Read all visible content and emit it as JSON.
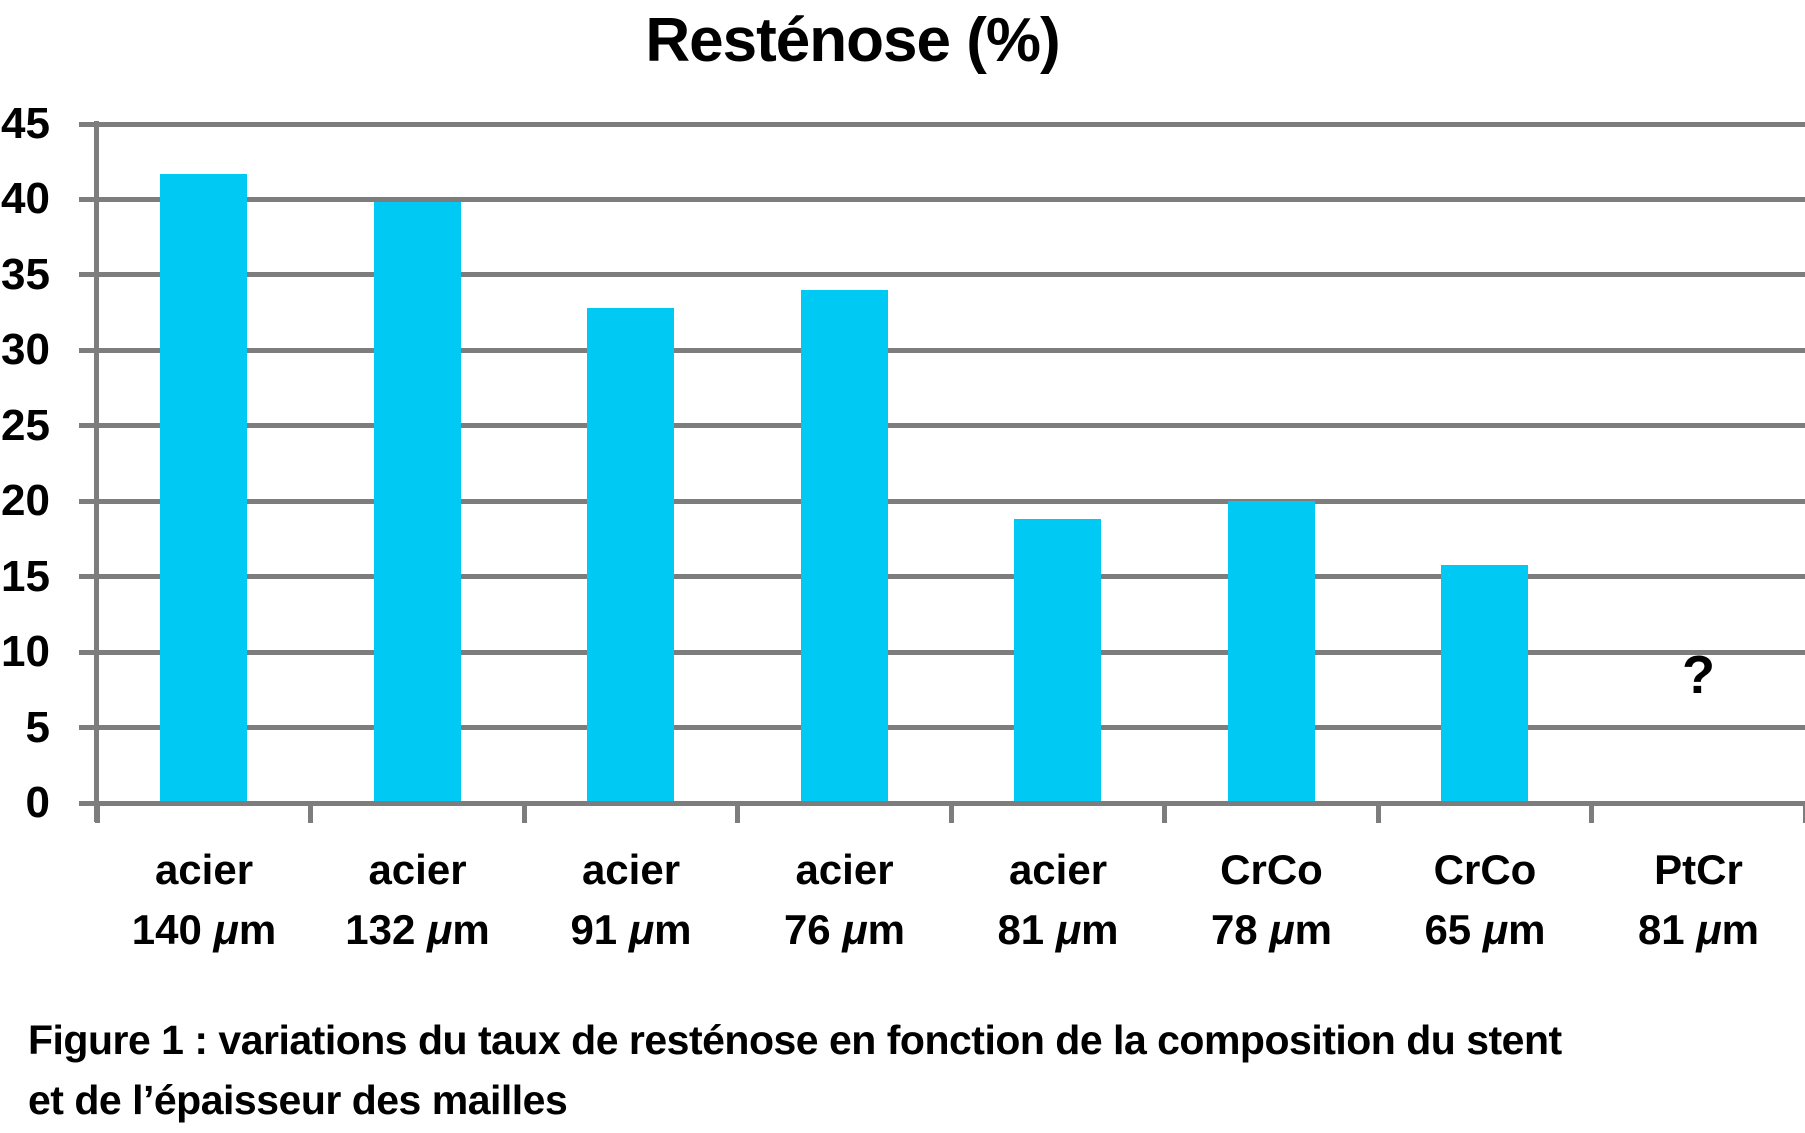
{
  "chart_data": {
    "type": "bar",
    "title": "Resténose (%)",
    "categories": [
      "acier 140 μm",
      "acier 132 μm",
      "acier 91 μm",
      "acier 76 μm",
      "acier 81 μm",
      "CrCo 78 μm",
      "CrCo 65 μm",
      "PtCr 81 μm"
    ],
    "category_lines": [
      {
        "material": "acier",
        "thickness": "140"
      },
      {
        "material": "acier",
        "thickness": "132"
      },
      {
        "material": "acier",
        "thickness": "91"
      },
      {
        "material": "acier",
        "thickness": "76"
      },
      {
        "material": "acier",
        "thickness": "81"
      },
      {
        "material": "CrCo",
        "thickness": "78"
      },
      {
        "material": "CrCo",
        "thickness": "65"
      },
      {
        "material": "PtCr",
        "thickness": "81"
      }
    ],
    "unit": {
      "mu": "μ",
      "m": "m"
    },
    "values": [
      41.7,
      39.8,
      32.8,
      34,
      18.8,
      20,
      15.8,
      null
    ],
    "annotation": {
      "category_index": 7,
      "text": "?",
      "approx_value": 8
    },
    "ylim": [
      0,
      45
    ],
    "ytick_step": 5,
    "yticks": [
      0,
      5,
      10,
      15,
      20,
      25,
      30,
      35,
      40,
      45
    ],
    "xlabel": "",
    "ylabel": "",
    "grid": true,
    "legend": false,
    "bar_color": "#00CAF3",
    "grid_color": "#7d7d7d",
    "text_color": "#000000",
    "background_color": "#ffffff"
  },
  "caption": {
    "line1": "Figure 1 : variations du taux de resténose en fonction de la composition du stent",
    "line2": "et de l’épaisseur des mailles"
  }
}
